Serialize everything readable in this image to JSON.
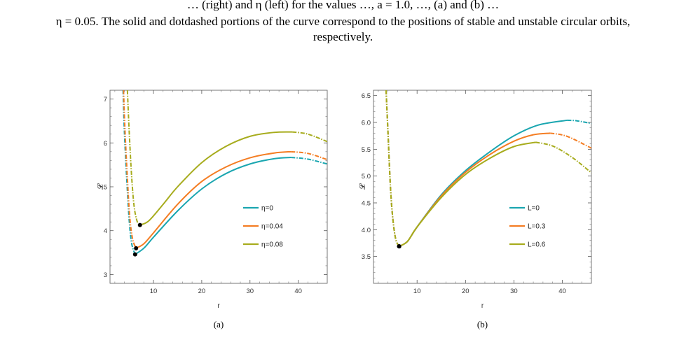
{
  "caption": {
    "line1": "… (right) and η (left) for the values …, a = 1.0, …, (a) and (b) …",
    "line2": "η = 0.05. The solid and dotdashed portions of the curve correspond to the positions of stable and unstable circular orbits,",
    "line3": "respectively."
  },
  "chart_data": [
    {
      "type": "line",
      "sublabel": "(a)",
      "xlabel": "r",
      "ylabel": "𝓛",
      "xlim": [
        1,
        46
      ],
      "ylim": [
        2.8,
        7.2
      ],
      "xticks": [
        10,
        20,
        30,
        40
      ],
      "yticks": [
        3,
        4,
        5,
        6,
        7
      ],
      "legend_position": "center-right",
      "series": [
        {
          "name": "η=0",
          "color": "#1aa6b0",
          "min": [
            6.2,
            3.46
          ],
          "max": [
            38.5,
            5.67
          ],
          "asym": 7.6,
          "endY": 5.52,
          "points": [
            [
              3.7,
              7.2
            ],
            [
              4,
              6.2
            ],
            [
              4.5,
              5.1
            ],
            [
              5,
              4.2
            ],
            [
              5.5,
              3.7
            ],
            [
              6.2,
              3.46
            ],
            [
              8,
              3.6
            ],
            [
              10,
              3.85
            ],
            [
              15,
              4.45
            ],
            [
              20,
              4.95
            ],
            [
              25,
              5.3
            ],
            [
              30,
              5.52
            ],
            [
              35,
              5.64
            ],
            [
              38.5,
              5.67
            ],
            [
              42,
              5.63
            ],
            [
              46,
              5.52
            ]
          ]
        },
        {
          "name": "η=0.04",
          "color": "#f47d23",
          "min": [
            6.4,
            3.6
          ],
          "max": [
            38.5,
            5.8
          ],
          "asym": 7.6,
          "endY": 5.62,
          "points": [
            [
              3.8,
              7.2
            ],
            [
              4.1,
              6.3
            ],
            [
              4.6,
              5.2
            ],
            [
              5.1,
              4.3
            ],
            [
              5.7,
              3.8
            ],
            [
              6.4,
              3.6
            ],
            [
              8,
              3.7
            ],
            [
              10,
              3.95
            ],
            [
              15,
              4.6
            ],
            [
              20,
              5.12
            ],
            [
              25,
              5.45
            ],
            [
              30,
              5.66
            ],
            [
              35,
              5.77
            ],
            [
              38.5,
              5.8
            ],
            [
              42,
              5.76
            ],
            [
              46,
              5.62
            ]
          ]
        },
        {
          "name": "η=0.08",
          "color": "#a7ac1d",
          "min": [
            7.2,
            4.13
          ],
          "max": [
            38.8,
            6.25
          ],
          "asym": 7.6,
          "endY": 6.03,
          "points": [
            [
              4.6,
              7.2
            ],
            [
              5,
              6.2
            ],
            [
              5.5,
              5.2
            ],
            [
              6,
              4.55
            ],
            [
              6.6,
              4.22
            ],
            [
              7.2,
              4.13
            ],
            [
              9,
              4.22
            ],
            [
              12,
              4.6
            ],
            [
              15,
              5.0
            ],
            [
              20,
              5.55
            ],
            [
              25,
              5.92
            ],
            [
              30,
              6.15
            ],
            [
              35,
              6.24
            ],
            [
              38.8,
              6.25
            ],
            [
              42,
              6.2
            ],
            [
              46,
              6.03
            ]
          ]
        }
      ]
    },
    {
      "type": "line",
      "sublabel": "(b)",
      "xlabel": "r",
      "ylabel": "𝓛",
      "xlim": [
        1,
        46
      ],
      "ylim": [
        3.0,
        6.6
      ],
      "xticks": [
        10,
        20,
        30,
        40
      ],
      "yticks": [
        3.5,
        4.0,
        4.5,
        5.0,
        5.5,
        6.0,
        6.5
      ],
      "legend_position": "center-right",
      "series": [
        {
          "name": "L=0",
          "color": "#1aa6b0",
          "min": [
            6.3,
            3.69
          ],
          "max": [
            41,
            6.04
          ],
          "asym": 7.6,
          "endY": 5.98,
          "points": [
            [
              3.6,
              6.6
            ],
            [
              4,
              5.8
            ],
            [
              4.5,
              4.8
            ],
            [
              5,
              4.2
            ],
            [
              5.6,
              3.82
            ],
            [
              6.3,
              3.69
            ],
            [
              8,
              3.78
            ],
            [
              10,
              4.05
            ],
            [
              15,
              4.65
            ],
            [
              20,
              5.1
            ],
            [
              25,
              5.45
            ],
            [
              30,
              5.75
            ],
            [
              35,
              5.95
            ],
            [
              41,
              6.04
            ],
            [
              43,
              6.03
            ],
            [
              46,
              5.98
            ]
          ]
        },
        {
          "name": "L=0.3",
          "color": "#f47d23",
          "min": [
            6.3,
            3.69
          ],
          "max": [
            37.5,
            5.8
          ],
          "asym": 7.6,
          "endY": 5.52,
          "points": [
            [
              3.6,
              6.6
            ],
            [
              4,
              5.8
            ],
            [
              4.5,
              4.8
            ],
            [
              5,
              4.2
            ],
            [
              5.6,
              3.82
            ],
            [
              6.3,
              3.69
            ],
            [
              8,
              3.78
            ],
            [
              10,
              4.05
            ],
            [
              15,
              4.63
            ],
            [
              20,
              5.07
            ],
            [
              25,
              5.4
            ],
            [
              30,
              5.65
            ],
            [
              34,
              5.77
            ],
            [
              37.5,
              5.8
            ],
            [
              41,
              5.74
            ],
            [
              46,
              5.52
            ]
          ]
        },
        {
          "name": "L=0.6",
          "color": "#a7ac1d",
          "min": [
            6.3,
            3.69
          ],
          "max": [
            34.5,
            5.63
          ],
          "asym": 7.6,
          "endY": 5.06,
          "points": [
            [
              3.6,
              6.6
            ],
            [
              4,
              5.8
            ],
            [
              4.5,
              4.8
            ],
            [
              5,
              4.2
            ],
            [
              5.6,
              3.82
            ],
            [
              6.3,
              3.69
            ],
            [
              8,
              3.78
            ],
            [
              10,
              4.05
            ],
            [
              15,
              4.6
            ],
            [
              20,
              5.03
            ],
            [
              25,
              5.33
            ],
            [
              30,
              5.55
            ],
            [
              34.5,
              5.63
            ],
            [
              38,
              5.56
            ],
            [
              42,
              5.35
            ],
            [
              46,
              5.06
            ]
          ]
        }
      ]
    }
  ]
}
